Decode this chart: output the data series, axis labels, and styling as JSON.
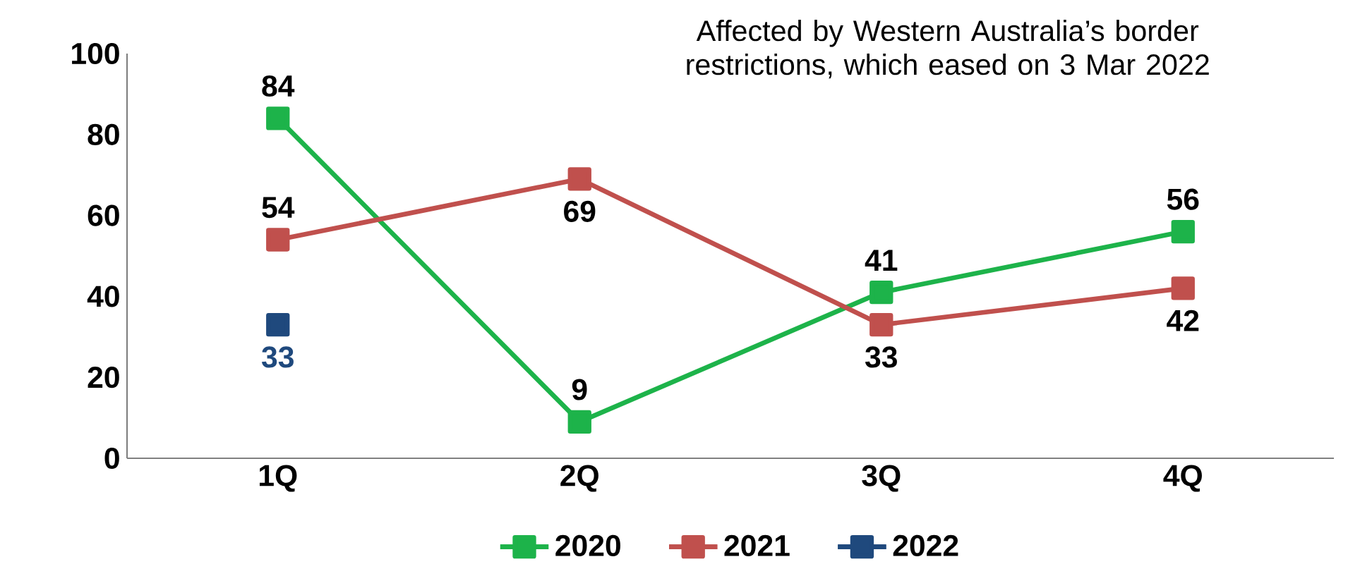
{
  "chart_data": {
    "type": "line",
    "categories": [
      "1Q",
      "2Q",
      "3Q",
      "4Q"
    ],
    "series": [
      {
        "name": "2020",
        "color": "#1db34a",
        "values": [
          84,
          9,
          41,
          56
        ]
      },
      {
        "name": "2021",
        "color": "#c0504d",
        "values": [
          54,
          69,
          33,
          42
        ]
      },
      {
        "name": "2022",
        "color": "#1f497d",
        "values": [
          33,
          null,
          null,
          null
        ]
      }
    ],
    "ylim": [
      0,
      100
    ],
    "yticks": [
      0,
      20,
      40,
      60,
      80,
      100
    ],
    "grid": false,
    "legend": "bottom",
    "marker": "square",
    "line_style": "solid",
    "data_labels": true,
    "annotations": [
      "Affected by Western Australia’s border restrictions, which eased on 3 Mar 2022"
    ]
  }
}
